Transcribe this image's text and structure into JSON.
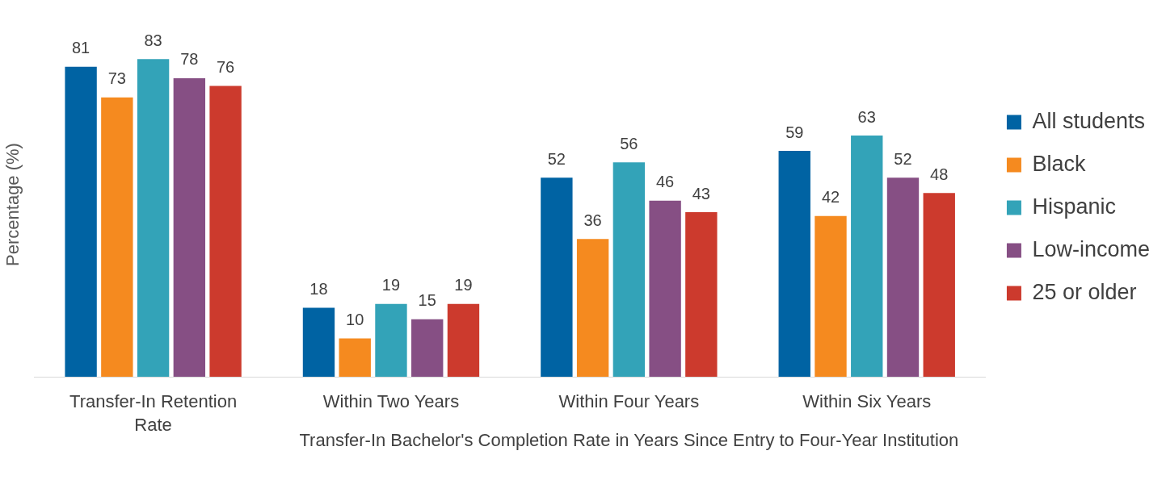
{
  "chart_data": {
    "type": "bar",
    "ylabel": "Percentage (%)",
    "categories": [
      "Transfer-In Retention Rate",
      "Within Two Years",
      "Within Four Years",
      "Within Six Years"
    ],
    "series": [
      {
        "name": "All students",
        "color": "#0063a3",
        "values": [
          81,
          18,
          52,
          59
        ]
      },
      {
        "name": "Black",
        "color": "#f58a1f",
        "values": [
          73,
          10,
          36,
          42
        ]
      },
      {
        "name": "Hispanic",
        "color": "#33a3b8",
        "values": [
          83,
          19,
          56,
          63
        ]
      },
      {
        "name": "Low-income",
        "color": "#864f84",
        "values": [
          78,
          15,
          46,
          52
        ]
      },
      {
        "name": "25 or older",
        "color": "#cc3a2d",
        "values": [
          76,
          19,
          43,
          48
        ]
      }
    ],
    "annotations": [
      "Transfer-In Bachelor's Completion Rate in Years Since Entry to Four-Year Institution"
    ],
    "data_labels": true,
    "legend": "right",
    "grid": false
  }
}
